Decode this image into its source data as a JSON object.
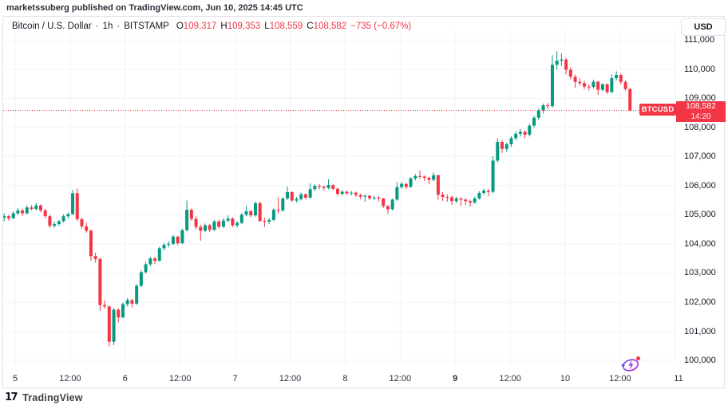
{
  "header": {
    "attribution": "marketssuberg published on TradingView.com, Jun 10, 2025 14:45 UTC"
  },
  "legend": {
    "symbol_title": "Bitcoin / U.S. Dollar",
    "separator": "·",
    "interval": "1h",
    "exchange": "BITSTAMP",
    "o_label": "O",
    "o_value": "109,317",
    "h_label": "H",
    "h_value": "109,353",
    "l_label": "L",
    "l_value": "108,559",
    "c_label": "C",
    "c_value": "108,582",
    "change": "−735 (−0.67%)"
  },
  "price_axis": {
    "currency_button": "USD",
    "labels": [
      "111,000",
      "110,000",
      "109,000",
      "108,000",
      "107,000",
      "106,000",
      "105,000",
      "104,000",
      "103,000",
      "102,000",
      "101,000",
      "100,000"
    ],
    "badge": {
      "symbol": "BTCUSD",
      "price": "108,582",
      "time": "14:20"
    }
  },
  "time_axis": {
    "labels": [
      {
        "text": "5",
        "bold": false
      },
      {
        "text": "12:00",
        "bold": false
      },
      {
        "text": "6",
        "bold": false
      },
      {
        "text": "12:00",
        "bold": false
      },
      {
        "text": "7",
        "bold": false
      },
      {
        "text": "12:00",
        "bold": false
      },
      {
        "text": "8",
        "bold": false
      },
      {
        "text": "12:00",
        "bold": false
      },
      {
        "text": "9",
        "bold": true
      },
      {
        "text": "12:00",
        "bold": false
      },
      {
        "text": "10",
        "bold": false
      },
      {
        "text": "12:00",
        "bold": false
      },
      {
        "text": "11",
        "bold": false
      }
    ]
  },
  "footer": {
    "logo_mark": "17",
    "brand": "TradingView"
  },
  "colors": {
    "up": "#089981",
    "down": "#f23645",
    "accent": "#f23645",
    "grid": "#f0f3fa",
    "border": "#e0e3eb",
    "text": "#131722",
    "replay_purple": "#8e44d8",
    "replay_dot": "#f23645"
  },
  "chart_data": {
    "type": "candlestick",
    "symbol": "BTCUSD",
    "exchange": "BITSTAMP",
    "interval": "1h",
    "title": "Bitcoin / U.S. Dollar · 1h · BITSTAMP",
    "unit": "USD",
    "y_axis": {
      "min": 100000,
      "max": 111000,
      "tick_step": 1000
    },
    "x_labels": [
      "5",
      "12:00",
      "6",
      "12:00",
      "7",
      "12:00",
      "8",
      "12:00",
      "9",
      "12:00",
      "10",
      "12:00",
      "11"
    ],
    "time_span": "Jun 4 ~21:00 UTC to Jun 10 14:00 UTC, hourly candles",
    "last_price": 108582,
    "last_time": "14:20",
    "last_candle": {
      "open": 109317,
      "high": 109353,
      "low": 108559,
      "close": 108582,
      "change": -735,
      "change_pct": -0.67
    },
    "grid": true,
    "legend_position": "top-left",
    "candles": [
      [
        104900,
        105050,
        104780,
        104950
      ],
      [
        104950,
        105000,
        104800,
        104880
      ],
      [
        104880,
        105120,
        104850,
        105050
      ],
      [
        105050,
        105230,
        105000,
        105150
      ],
      [
        105150,
        105200,
        104960,
        105050
      ],
      [
        105050,
        105320,
        105020,
        105250
      ],
      [
        105250,
        105330,
        105150,
        105200
      ],
      [
        105200,
        105400,
        105150,
        105320
      ],
      [
        105320,
        105360,
        105080,
        105150
      ],
      [
        105150,
        105200,
        104880,
        104950
      ],
      [
        104950,
        105000,
        104550,
        104620
      ],
      [
        104620,
        104760,
        104560,
        104680
      ],
      [
        104680,
        104820,
        104620,
        104780
      ],
      [
        104780,
        105010,
        104730,
        104950
      ],
      [
        104950,
        105080,
        104870,
        105020
      ],
      [
        105020,
        105850,
        104990,
        105740
      ],
      [
        105740,
        105900,
        104780,
        104850
      ],
      [
        104850,
        104900,
        104520,
        104600
      ],
      [
        104600,
        104720,
        104380,
        104450
      ],
      [
        104450,
        104500,
        103420,
        103580
      ],
      [
        103580,
        103700,
        103350,
        103480
      ],
      [
        103480,
        103520,
        101700,
        101900
      ],
      [
        101900,
        102060,
        101780,
        101850
      ],
      [
        101850,
        101880,
        100480,
        100640
      ],
      [
        100640,
        101800,
        100520,
        101740
      ],
      [
        101740,
        101790,
        101300,
        101480
      ],
      [
        101480,
        101990,
        101440,
        101930
      ],
      [
        101930,
        102150,
        101850,
        102070
      ],
      [
        102070,
        102120,
        101820,
        101950
      ],
      [
        101950,
        102620,
        101900,
        102560
      ],
      [
        102560,
        103090,
        102520,
        103030
      ],
      [
        103030,
        103380,
        102980,
        103300
      ],
      [
        103300,
        103560,
        103240,
        103500
      ],
      [
        103500,
        103560,
        103300,
        103420
      ],
      [
        103420,
        103900,
        103400,
        103850
      ],
      [
        103850,
        104030,
        103780,
        103970
      ],
      [
        103970,
        104100,
        103880,
        104000
      ],
      [
        104000,
        104310,
        103960,
        104250
      ],
      [
        104250,
        104280,
        103950,
        104020
      ],
      [
        104020,
        104520,
        104000,
        104470
      ],
      [
        104470,
        105490,
        104420,
        105170
      ],
      [
        105170,
        105220,
        104790,
        104860
      ],
      [
        104860,
        104950,
        104500,
        104580
      ],
      [
        104580,
        104660,
        104110,
        104450
      ],
      [
        104450,
        104700,
        104400,
        104640
      ],
      [
        104640,
        104690,
        104410,
        104480
      ],
      [
        104480,
        104820,
        104450,
        104770
      ],
      [
        104770,
        104830,
        104520,
        104590
      ],
      [
        104590,
        104870,
        104550,
        104800
      ],
      [
        104800,
        104980,
        104740,
        104870
      ],
      [
        104870,
        104920,
        104570,
        104640
      ],
      [
        104640,
        104790,
        104560,
        104720
      ],
      [
        104720,
        105060,
        104680,
        105000
      ],
      [
        105000,
        105300,
        104950,
        105120
      ],
      [
        105120,
        105170,
        104910,
        104980
      ],
      [
        104980,
        105460,
        104930,
        105400
      ],
      [
        105400,
        105440,
        104740,
        104790
      ],
      [
        104790,
        104900,
        104580,
        104770
      ],
      [
        104770,
        104890,
        104680,
        104820
      ],
      [
        104820,
        105220,
        104780,
        105170
      ],
      [
        105170,
        105600,
        105050,
        105150
      ],
      [
        105150,
        105600,
        105100,
        105560
      ],
      [
        105560,
        105970,
        105510,
        105780
      ],
      [
        105780,
        105800,
        105440,
        105490
      ],
      [
        105490,
        105610,
        105420,
        105540
      ],
      [
        105540,
        105770,
        105490,
        105700
      ],
      [
        105700,
        105740,
        105520,
        105590
      ],
      [
        105590,
        106080,
        105560,
        105880
      ],
      [
        105880,
        106050,
        105820,
        105990
      ],
      [
        105990,
        106060,
        105870,
        105960
      ],
      [
        105960,
        106010,
        105830,
        105920
      ],
      [
        105920,
        106220,
        105880,
        106020
      ],
      [
        106020,
        106050,
        105840,
        105890
      ],
      [
        105890,
        105930,
        105650,
        105720
      ],
      [
        105720,
        105850,
        105660,
        105790
      ],
      [
        105790,
        105830,
        105680,
        105740
      ],
      [
        105740,
        105820,
        105660,
        105760
      ],
      [
        105760,
        105790,
        105610,
        105680
      ],
      [
        105680,
        105720,
        105540,
        105620
      ],
      [
        105620,
        105700,
        105450,
        105650
      ],
      [
        105650,
        105680,
        105500,
        105570
      ],
      [
        105570,
        105650,
        105510,
        105590
      ],
      [
        105590,
        105640,
        105470,
        105560
      ],
      [
        105560,
        105580,
        105230,
        105300
      ],
      [
        105300,
        105330,
        105030,
        105190
      ],
      [
        105190,
        105560,
        105150,
        105520
      ],
      [
        105520,
        106120,
        105480,
        105950
      ],
      [
        105950,
        106130,
        105900,
        106060
      ],
      [
        106060,
        106090,
        105880,
        105960
      ],
      [
        105960,
        106290,
        105920,
        106250
      ],
      [
        106250,
        106400,
        106180,
        106330
      ],
      [
        106330,
        106520,
        106230,
        106310
      ],
      [
        106310,
        106350,
        106160,
        106270
      ],
      [
        106270,
        106310,
        106050,
        106200
      ],
      [
        106200,
        106450,
        106150,
        106360
      ],
      [
        106360,
        106380,
        105520,
        105690
      ],
      [
        105690,
        105780,
        105480,
        105610
      ],
      [
        105610,
        105700,
        105450,
        105600
      ],
      [
        105600,
        105650,
        105340,
        105470
      ],
      [
        105470,
        105620,
        105400,
        105560
      ],
      [
        105560,
        105600,
        105300,
        105520
      ],
      [
        105520,
        105570,
        105340,
        105470
      ],
      [
        105470,
        105520,
        105280,
        105420
      ],
      [
        105420,
        105620,
        105380,
        105560
      ],
      [
        105560,
        105810,
        105520,
        105750
      ],
      [
        105750,
        105900,
        105680,
        105830
      ],
      [
        105830,
        105870,
        105640,
        105790
      ],
      [
        105790,
        107010,
        105740,
        106860
      ],
      [
        106860,
        107630,
        106800,
        107500
      ],
      [
        107500,
        107560,
        107120,
        107260
      ],
      [
        107260,
        107480,
        107160,
        107420
      ],
      [
        107420,
        107700,
        107330,
        107630
      ],
      [
        107630,
        107860,
        107550,
        107780
      ],
      [
        107780,
        107950,
        107680,
        107850
      ],
      [
        107850,
        107900,
        107620,
        107750
      ],
      [
        107750,
        108120,
        107690,
        108060
      ],
      [
        108060,
        108400,
        108000,
        108330
      ],
      [
        108330,
        108640,
        108260,
        108580
      ],
      [
        108580,
        108820,
        108480,
        108760
      ],
      [
        108760,
        108840,
        108620,
        108730
      ],
      [
        108730,
        110480,
        108680,
        110150
      ],
      [
        110150,
        110620,
        109980,
        110290
      ],
      [
        110290,
        110540,
        110110,
        110330
      ],
      [
        110330,
        110390,
        109820,
        109980
      ],
      [
        109980,
        110070,
        109660,
        109740
      ],
      [
        109740,
        109810,
        109360,
        109560
      ],
      [
        109560,
        109690,
        109440,
        109520
      ],
      [
        109520,
        109600,
        109310,
        109400
      ],
      [
        109400,
        109480,
        109270,
        109390
      ],
      [
        109390,
        109640,
        109330,
        109570
      ],
      [
        109570,
        109590,
        109110,
        109290
      ],
      [
        109290,
        109520,
        109240,
        109480
      ],
      [
        109480,
        109510,
        109150,
        109210
      ],
      [
        109210,
        109820,
        109180,
        109690
      ],
      [
        109690,
        109930,
        109610,
        109800
      ],
      [
        109800,
        109850,
        109480,
        109560
      ],
      [
        109560,
        109620,
        109260,
        109317
      ],
      [
        109317,
        109353,
        108559,
        108582
      ]
    ]
  }
}
